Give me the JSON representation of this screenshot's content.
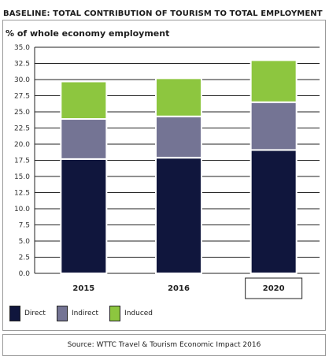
{
  "chart_data": {
    "type": "bar",
    "stacked": true,
    "title": "BASELINE: TOTAL CONTRIBUTION OF TOURISM TO TOTAL EMPLOYMENT",
    "subtitle": "% of whole economy employment",
    "categories": [
      "2015",
      "2016",
      "2020"
    ],
    "series": [
      {
        "name": "Direct",
        "color": "#10163d",
        "values": [
          17.7,
          17.9,
          19.1
        ]
      },
      {
        "name": "Indirect",
        "color": "#747494",
        "values": [
          6.2,
          6.4,
          7.4
        ]
      },
      {
        "name": "Induced",
        "color": "#8dc63f",
        "values": [
          5.8,
          5.9,
          6.5
        ]
      }
    ],
    "ylim": [
      0,
      35
    ],
    "yticks": [
      "0.0",
      "2.5",
      "5.0",
      "7.5",
      "10.0",
      "12.5",
      "15.0",
      "17.5",
      "20.0",
      "22.5",
      "25.0",
      "27.5",
      "30.0",
      "32.5",
      "35.0"
    ],
    "grid": true,
    "legend_position": "bottom-left",
    "source": "Source: WTTC Travel & Tourism Economic Impact 2016"
  }
}
